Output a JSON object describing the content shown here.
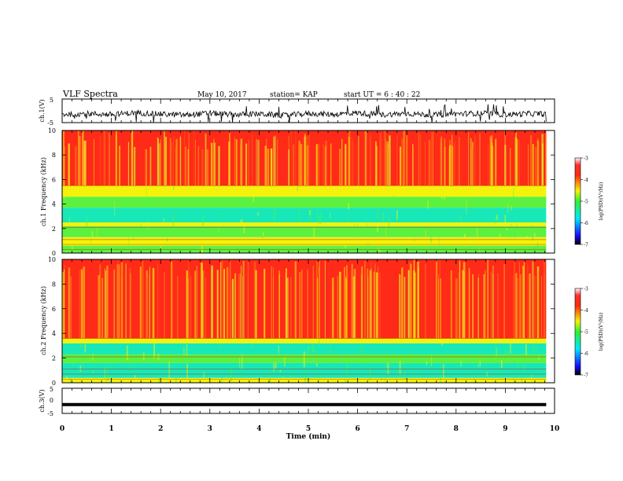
{
  "header": {
    "title": "VLF Spectra",
    "date": "May 10, 2017",
    "station": "station= KAP",
    "start": "start  UT =   6 : 40 : 22"
  },
  "colorbar_ticks": [
    "-3",
    "-4",
    "-5",
    "-6",
    "-7"
  ],
  "colorbar_label": "log(PSD)(V²/Hz)",
  "colors": {
    "red": "#ff2a18",
    "orange": "#ff9a18",
    "yellow": "#f4f20a",
    "green": "#5cf040",
    "cyan": "#18e8b8"
  },
  "chart_data": [
    {
      "type": "line",
      "name": "ch1-waveform",
      "ylabel": "ch.1(V)",
      "ylim": [
        -5,
        5
      ],
      "yticks": [
        "5",
        "-5"
      ],
      "x": [
        0,
        0.5,
        1,
        1.5,
        2,
        2.5,
        3,
        3.5,
        4,
        4.5,
        5,
        5.5,
        6,
        6.5,
        7,
        7.5,
        8,
        8.5,
        9,
        9.5,
        9.83
      ],
      "y": [
        -1.5,
        -1.2,
        -1.6,
        -0.8,
        -1.4,
        -1.8,
        -1.0,
        -1.6,
        -1.3,
        -2.0,
        -1.2,
        -1.5,
        -0.9,
        -1.7,
        -1.1,
        -1.8,
        -1.3,
        -1.0,
        -1.6,
        -1.2,
        -1.4
      ]
    },
    {
      "type": "heatmap",
      "name": "ch1-spectrogram",
      "ylabel": "ch.1 Frequency  (kHz)",
      "ylim": [
        0,
        10
      ],
      "yticks": [
        "0",
        "2",
        "4",
        "6",
        "8",
        "10"
      ],
      "bands_khz": [
        [
          0,
          0.6,
          "green"
        ],
        [
          0.6,
          1.3,
          "yellow"
        ],
        [
          1.3,
          2.2,
          "green"
        ],
        [
          2.2,
          2.5,
          "yellow"
        ],
        [
          2.5,
          3.7,
          "cyan"
        ],
        [
          3.7,
          4.6,
          "green"
        ],
        [
          4.6,
          5.5,
          "yellow"
        ],
        [
          5.5,
          10,
          "red"
        ]
      ],
      "color_scale": "log(PSD)(V²/Hz)",
      "clim": [
        -7,
        -3
      ]
    },
    {
      "type": "heatmap",
      "name": "ch2-spectrogram",
      "ylabel": "ch.2 Frequency  (kHz)",
      "ylim": [
        0,
        10
      ],
      "yticks": [
        "0",
        "2",
        "4",
        "6",
        "8",
        "10"
      ],
      "bands_khz": [
        [
          0,
          0.4,
          "yellow"
        ],
        [
          0.4,
          1.6,
          "cyan"
        ],
        [
          1.6,
          2.3,
          "green"
        ],
        [
          2.3,
          3.2,
          "cyan"
        ],
        [
          3.2,
          3.6,
          "yellow"
        ],
        [
          3.6,
          10,
          "red"
        ]
      ],
      "color_scale": "log(PSD)(V²/Hz)",
      "clim": [
        -7,
        -3
      ]
    },
    {
      "type": "line",
      "name": "ch3-waveform",
      "ylabel": "ch.3(V)",
      "ylim": [
        -5,
        5
      ],
      "yticks": [
        "5",
        "0",
        "-5"
      ],
      "xlabel": "Time  (min)",
      "xlim": [
        0,
        10
      ],
      "xticks": [
        "0",
        "1",
        "2",
        "3",
        "4",
        "5",
        "6",
        "7",
        "8",
        "9",
        "10"
      ],
      "x": [
        0,
        9.83
      ],
      "y": [
        -1.5,
        -1.5
      ]
    }
  ]
}
